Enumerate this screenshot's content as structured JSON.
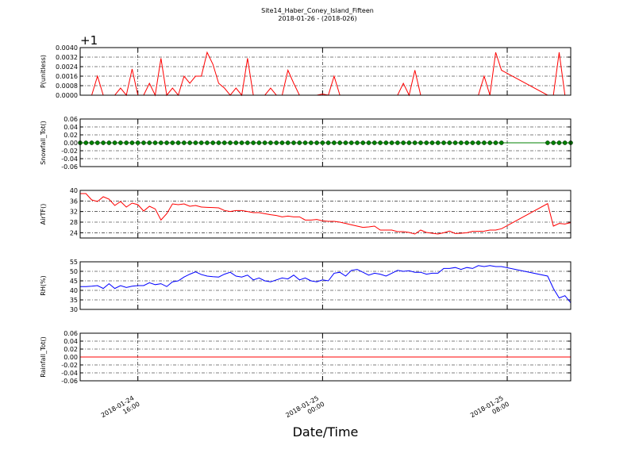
{
  "chart_data": {
    "type": "line",
    "title": "Site14_Haber_Coney_Island_Fifteen",
    "subtitle": "2018-01-26 - (2018-026)",
    "xlabel": "Date/Time",
    "grid": true,
    "xlim": [
      "2018-01-24 13:30",
      "2018-01-25 10:45"
    ],
    "xticks": [
      "2018-01-24 16:00",
      "2018-01-25 00:00",
      "2018-01-25 08:00"
    ],
    "x": [
      "2018-01-24 13:30",
      "2018-01-24 13:45",
      "2018-01-24 14:00",
      "2018-01-24 14:15",
      "2018-01-24 14:30",
      "2018-01-24 14:45",
      "2018-01-24 15:00",
      "2018-01-24 15:15",
      "2018-01-24 15:30",
      "2018-01-24 15:45",
      "2018-01-24 16:00",
      "2018-01-24 16:15",
      "2018-01-24 16:30",
      "2018-01-24 16:45",
      "2018-01-24 17:00",
      "2018-01-24 17:15",
      "2018-01-24 17:30",
      "2018-01-24 17:45",
      "2018-01-24 18:00",
      "2018-01-24 18:15",
      "2018-01-24 18:30",
      "2018-01-24 18:45",
      "2018-01-24 19:00",
      "2018-01-24 19:15",
      "2018-01-24 19:30",
      "2018-01-24 19:45",
      "2018-01-24 20:00",
      "2018-01-24 20:15",
      "2018-01-24 20:30",
      "2018-01-24 20:45",
      "2018-01-24 21:00",
      "2018-01-24 21:15",
      "2018-01-24 21:30",
      "2018-01-24 21:45",
      "2018-01-24 22:00",
      "2018-01-24 22:15",
      "2018-01-24 22:30",
      "2018-01-24 22:45",
      "2018-01-24 23:00",
      "2018-01-24 23:15",
      "2018-01-24 23:30",
      "2018-01-24 23:45",
      "2018-01-25 00:00",
      "2018-01-25 00:15",
      "2018-01-25 00:30",
      "2018-01-25 00:45",
      "2018-01-25 01:00",
      "2018-01-25 01:15",
      "2018-01-25 01:30",
      "2018-01-25 01:45",
      "2018-01-25 02:00",
      "2018-01-25 02:15",
      "2018-01-25 02:30",
      "2018-01-25 02:45",
      "2018-01-25 03:00",
      "2018-01-25 03:15",
      "2018-01-25 03:30",
      "2018-01-25 03:45",
      "2018-01-25 04:00",
      "2018-01-25 04:15",
      "2018-01-25 04:30",
      "2018-01-25 04:45",
      "2018-01-25 05:00",
      "2018-01-25 05:15",
      "2018-01-25 05:30",
      "2018-01-25 05:45",
      "2018-01-25 06:00",
      "2018-01-25 06:15",
      "2018-01-25 06:30",
      "2018-01-25 06:45",
      "2018-01-25 07:00",
      "2018-01-25 07:15",
      "2018-01-25 07:30",
      "2018-01-25 07:45",
      "2018-01-25 09:45",
      "2018-01-25 10:00",
      "2018-01-25 10:15",
      "2018-01-25 10:30",
      "2018-01-25 10:45"
    ],
    "panels": [
      {
        "ylabel": "P(unitless)",
        "offset_label": "+1",
        "color": "#ff0000",
        "markers": false,
        "ylim": [
          0,
          0.004
        ],
        "yticks": [
          {
            "value": 0,
            "label": "0.0000"
          },
          0.0008,
          0.0016,
          0.0024,
          0.0032,
          {
            "value": 0.004,
            "label": "0.0040"
          }
        ],
        "values": [
          0,
          0,
          0,
          0.0016,
          0,
          0,
          0,
          0.0006,
          0,
          0.0022,
          0,
          0,
          0.001,
          0,
          0.0031,
          0,
          0.0006,
          0,
          0.0016,
          0.001,
          0.0016,
          0.0016,
          0.0036,
          0.0026,
          0.001,
          0.0006,
          0,
          0.0006,
          0,
          0.0031,
          0,
          0,
          0,
          0.0006,
          0,
          0,
          0.0021,
          0.001,
          0,
          0,
          0,
          0,
          0.0001,
          0,
          0.0016,
          0,
          0,
          0,
          0,
          0,
          0,
          0,
          0,
          0,
          0,
          0,
          0.001,
          0,
          0.0021,
          0,
          0,
          0,
          0,
          0,
          0,
          0,
          0,
          0,
          0,
          0,
          0.0016,
          0,
          0.0036,
          0.0021,
          0,
          0,
          0.0036,
          0,
          0
        ]
      },
      {
        "ylabel": "Snowfall_Tot()",
        "color": "#008000",
        "markers": true,
        "ylim": [
          -0.06,
          0.06
        ],
        "yticks": [
          -0.06,
          -0.04,
          -0.02,
          {
            "value": 0,
            "label": "0.00"
          },
          0.02,
          0.04,
          0.06
        ],
        "values": [
          0,
          0,
          0,
          0,
          0,
          0,
          0,
          0,
          0,
          0,
          0,
          0,
          0,
          0,
          0,
          0,
          0,
          0,
          0,
          0,
          0,
          0,
          0,
          0,
          0,
          0,
          0,
          0,
          0,
          0,
          0,
          0,
          0,
          0,
          0,
          0,
          0,
          0,
          0,
          0,
          0,
          0,
          0,
          0,
          0,
          0,
          0,
          0,
          0,
          0,
          0,
          0,
          0,
          0,
          0,
          0,
          0,
          0,
          0,
          0,
          0,
          0,
          0,
          0,
          0,
          0,
          0,
          0,
          0,
          0,
          0,
          0,
          0,
          0,
          0,
          0,
          0,
          0,
          0
        ]
      },
      {
        "ylabel": "AirTF()",
        "color": "#ff0000",
        "markers": false,
        "ylim": [
          22,
          40
        ],
        "yticks": [
          24,
          28,
          32,
          36,
          40
        ],
        "values": [
          38.8,
          38.8,
          36.4,
          35.8,
          37.6,
          36.7,
          34.3,
          35.8,
          33.7,
          35.2,
          34.6,
          32.2,
          34,
          33,
          28.8,
          31.2,
          34.9,
          34.6,
          34.9,
          34,
          34.3,
          33.7,
          33.6,
          33.5,
          33.4,
          32.4,
          32,
          32.4,
          32.4,
          32,
          31.6,
          31.6,
          31.2,
          30.8,
          30.5,
          30,
          30.3,
          30,
          30,
          28.8,
          28.8,
          29,
          28.5,
          28.3,
          28.3,
          28,
          27.5,
          27,
          26.5,
          26,
          26.2,
          26.5,
          25,
          25,
          25,
          24.4,
          24.4,
          24.1,
          23.5,
          25,
          24.1,
          23.8,
          23.5,
          24,
          24.6,
          23.7,
          23.8,
          24,
          24.5,
          24.5,
          24.6,
          25,
          25,
          25.5,
          35,
          26.5,
          27.5,
          27.3,
          27.8
        ]
      },
      {
        "ylabel": "RH(%)",
        "color": "#0000ff",
        "markers": false,
        "ylim": [
          30,
          55
        ],
        "yticks": [
          30,
          35,
          40,
          45,
          50,
          55
        ],
        "values": [
          42,
          42,
          42.2,
          42.5,
          41,
          43.5,
          41,
          42.5,
          41.5,
          42.2,
          42.5,
          42.5,
          44,
          43,
          43.5,
          42,
          44.5,
          45,
          47,
          48.5,
          49.7,
          48.3,
          47.5,
          47.2,
          47,
          48.5,
          49.5,
          47.5,
          47,
          48,
          45.5,
          46.5,
          45,
          44.5,
          45.5,
          46.5,
          46,
          48,
          45.5,
          46.5,
          45,
          44.5,
          45.5,
          45,
          49,
          49.5,
          47.5,
          50.5,
          51,
          49.5,
          48,
          49,
          48.5,
          47.5,
          49,
          50.5,
          50,
          50.3,
          49.5,
          49.5,
          48.5,
          49,
          49,
          51.5,
          51.5,
          52,
          51,
          52,
          51.5,
          53,
          52.5,
          53,
          52.5,
          52.5,
          47.5,
          41,
          36,
          37.2,
          33.5
        ]
      },
      {
        "ylabel": "Rainfall_Tot()",
        "color": "#ff0000",
        "markers": false,
        "ylim": [
          -0.06,
          0.06
        ],
        "yticks": [
          -0.06,
          -0.04,
          -0.02,
          {
            "value": 0,
            "label": "0.00"
          },
          0.02,
          0.04,
          0.06
        ],
        "values": [
          0,
          0,
          0,
          0,
          0,
          0,
          0,
          0,
          0,
          0,
          0,
          0,
          0,
          0,
          0,
          0,
          0,
          0,
          0,
          0,
          0,
          0,
          0,
          0,
          0,
          0,
          0,
          0,
          0,
          0,
          0,
          0,
          0,
          0,
          0,
          0,
          0,
          0,
          0,
          0,
          0,
          0,
          0,
          0,
          0,
          0,
          0,
          0,
          0,
          0,
          0,
          0,
          0,
          0,
          0,
          0,
          0,
          0,
          0,
          0,
          0,
          0,
          0,
          0,
          0,
          0,
          0,
          0,
          0,
          0,
          0,
          0,
          0,
          0,
          0,
          0,
          0,
          0,
          0
        ]
      }
    ]
  }
}
